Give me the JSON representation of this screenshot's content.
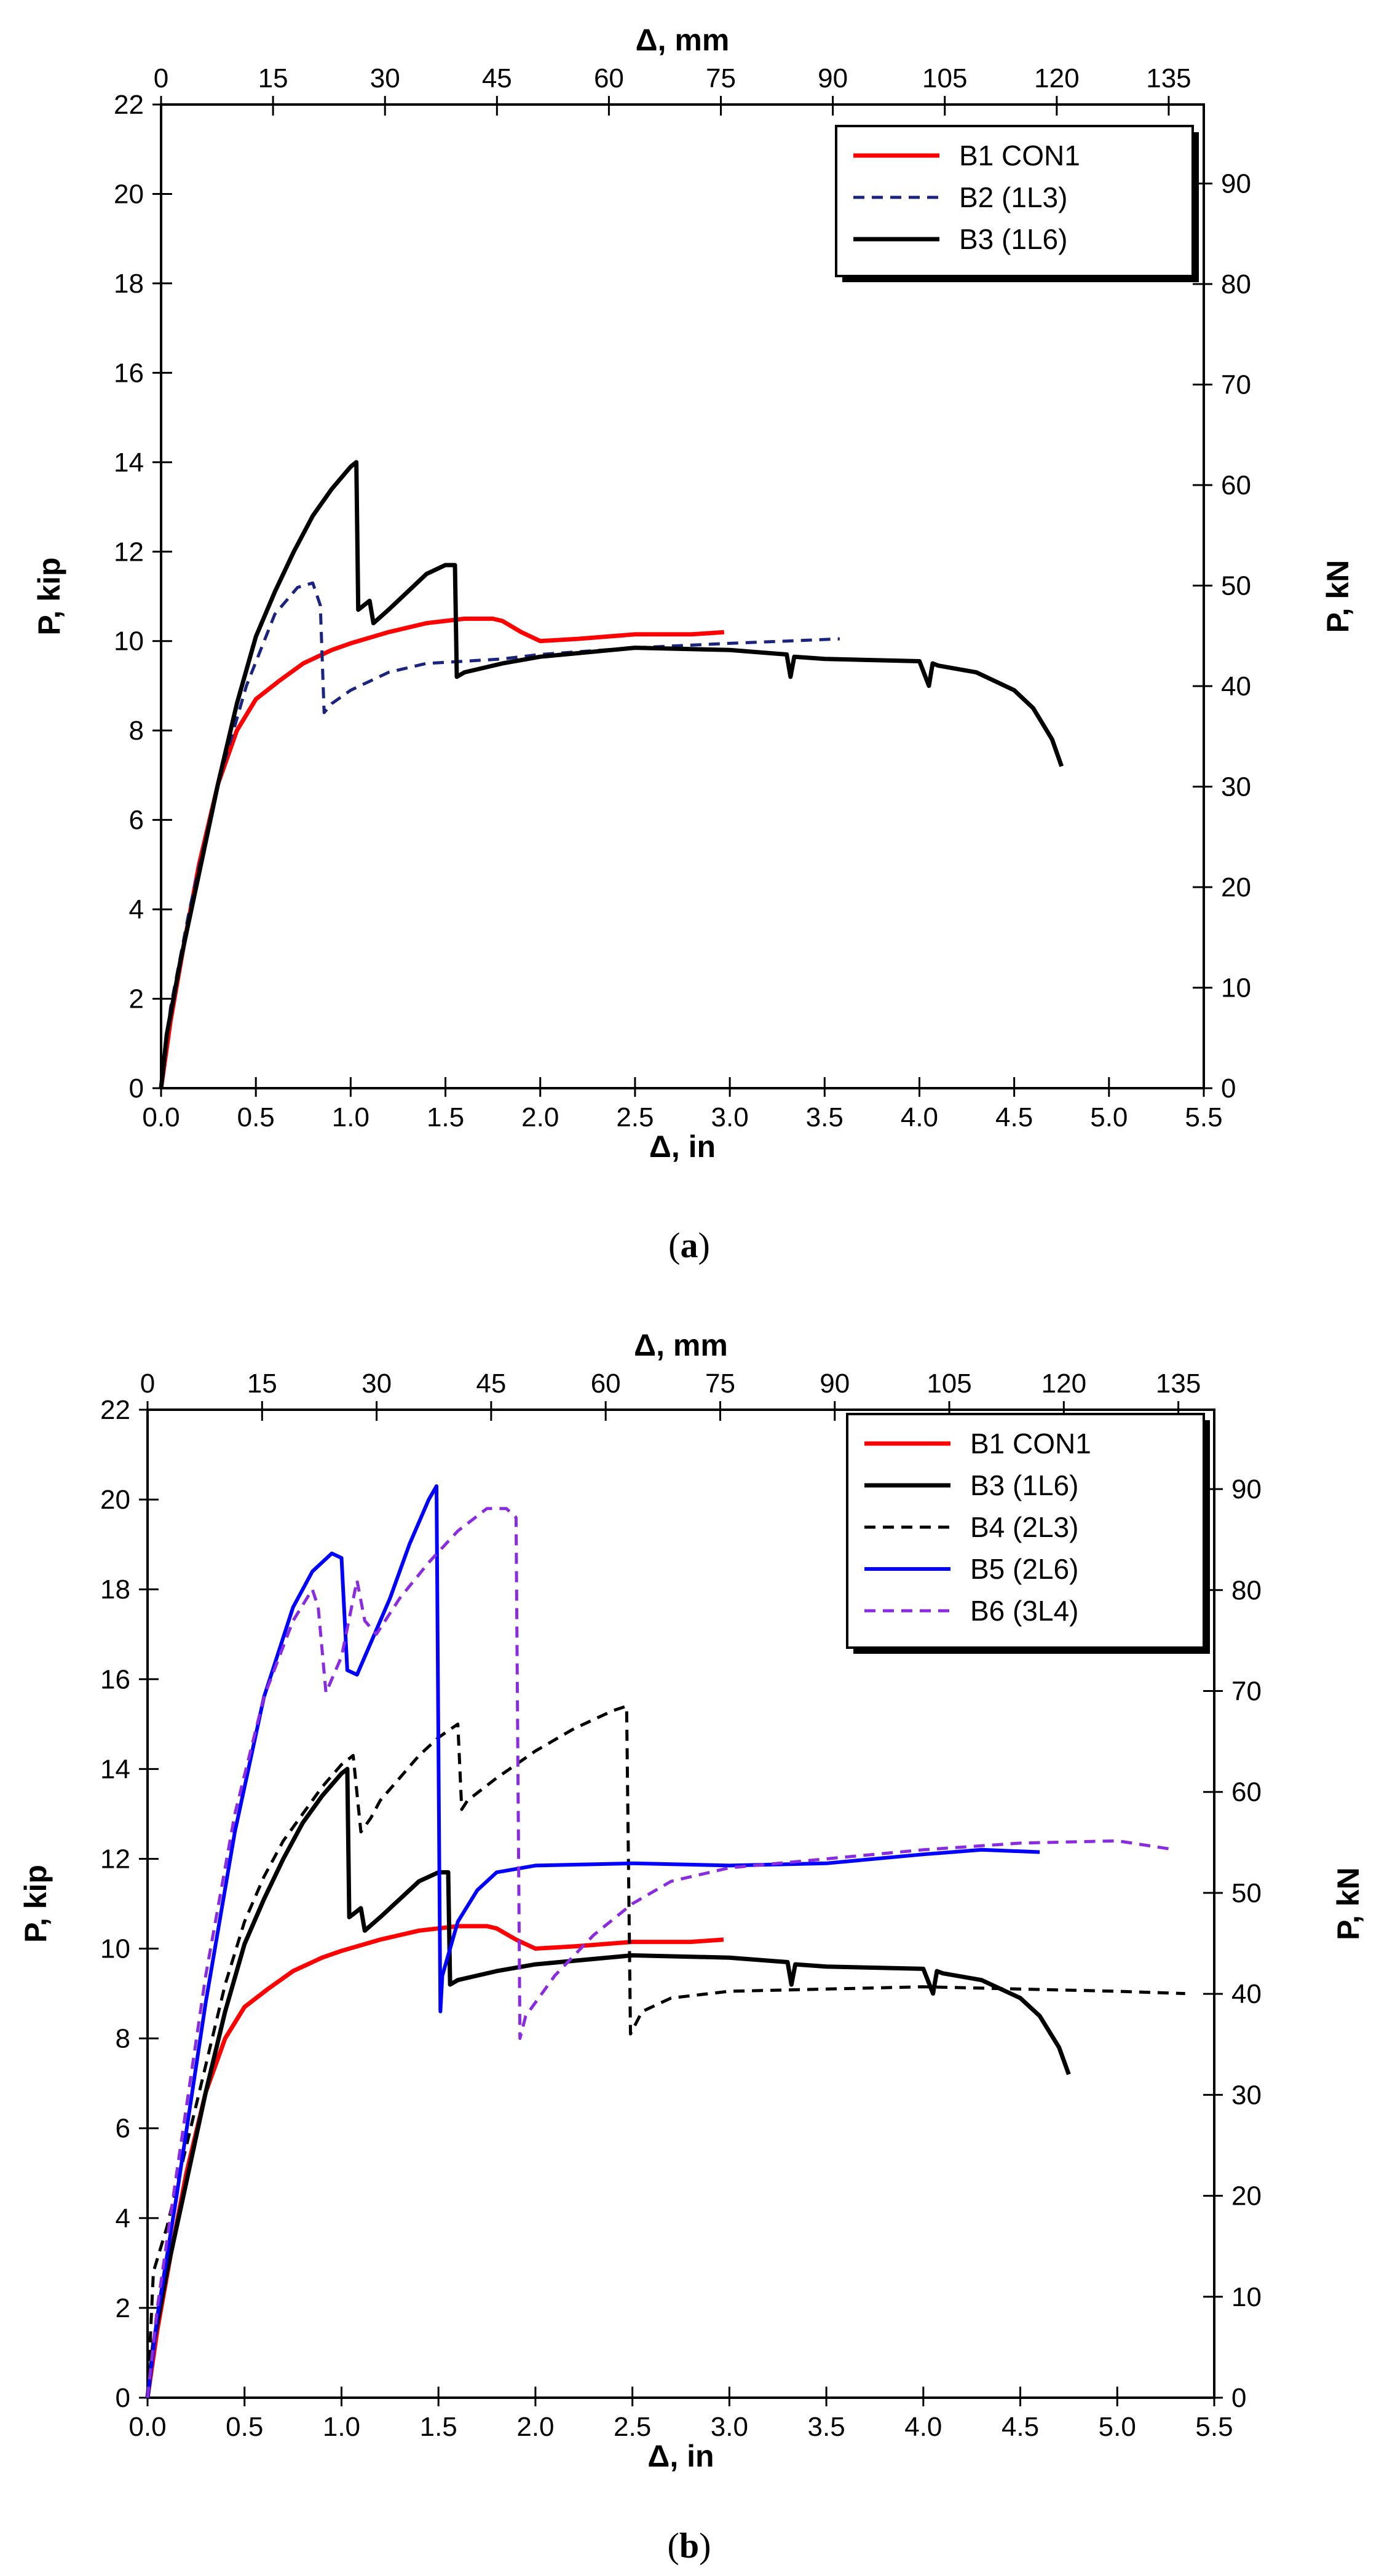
{
  "figure": {
    "panels": [
      "a",
      "b"
    ]
  },
  "chart_data": [
    {
      "id": "a",
      "type": "line",
      "caption_letter": "a",
      "caption_open": "(",
      "caption_close": ")",
      "xlabel": "Δ, in",
      "x2label": "Δ, mm",
      "ylabel": "P, kip",
      "y2label": "P, kN",
      "xlim": [
        0,
        5.5
      ],
      "ylim": [
        0,
        22
      ],
      "x2lim": [
        0,
        139.7
      ],
      "y2lim": [
        0,
        97.86
      ],
      "xticks": [
        "0.0",
        "0.5",
        "1.0",
        "1.5",
        "2.0",
        "2.5",
        "3.0",
        "3.5",
        "4.0",
        "4.5",
        "5.0",
        "5.5"
      ],
      "yticks": [
        "0",
        "2",
        "4",
        "6",
        "8",
        "10",
        "12",
        "14",
        "16",
        "18",
        "20",
        "22"
      ],
      "x2ticks": [
        "0",
        "15",
        "30",
        "45",
        "60",
        "75",
        "90",
        "105",
        "120",
        "135"
      ],
      "y2ticks": [
        "0",
        "10",
        "20",
        "30",
        "40",
        "50",
        "60",
        "70",
        "80",
        "90"
      ],
      "grid": false,
      "legend_position": "top-right",
      "series": [
        {
          "name": "B1 CON1",
          "color": "#ff0000",
          "dash": "solid",
          "width": 7,
          "x": [
            0,
            0.05,
            0.12,
            0.2,
            0.3,
            0.4,
            0.5,
            0.62,
            0.75,
            0.9,
            1.0,
            1.2,
            1.4,
            1.6,
            1.75,
            1.8,
            1.9,
            2.0,
            2.2,
            2.5,
            2.8,
            2.97
          ],
          "y": [
            0,
            1.5,
            3.2,
            5.0,
            6.8,
            8.0,
            8.7,
            9.1,
            9.5,
            9.8,
            9.95,
            10.2,
            10.4,
            10.5,
            10.5,
            10.45,
            10.2,
            10.0,
            10.05,
            10.15,
            10.15,
            10.2
          ]
        },
        {
          "name": "B2 (1L3)",
          "color": "#1a237e",
          "dash": "dashed",
          "width": 5,
          "x": [
            0,
            0.05,
            0.15,
            0.3,
            0.45,
            0.6,
            0.72,
            0.8,
            0.84,
            0.86,
            0.9,
            1.0,
            1.2,
            1.4,
            1.6,
            1.8,
            2.0,
            2.5,
            3.0,
            3.3,
            3.58
          ],
          "y": [
            0,
            1.8,
            4.0,
            6.8,
            9.0,
            10.6,
            11.2,
            11.3,
            10.8,
            8.4,
            8.6,
            8.9,
            9.3,
            9.5,
            9.55,
            9.6,
            9.7,
            9.85,
            9.95,
            10.0,
            10.05
          ]
        },
        {
          "name": "B3 (1L6)",
          "color": "#000000",
          "dash": "solid",
          "width": 7,
          "x": [
            0,
            0.03,
            0.1,
            0.2,
            0.3,
            0.4,
            0.5,
            0.6,
            0.7,
            0.8,
            0.9,
            1.0,
            1.03,
            1.04,
            1.1,
            1.12,
            1.2,
            1.3,
            1.4,
            1.5,
            1.55,
            1.56,
            1.6,
            1.8,
            2.0,
            2.5,
            3.0,
            3.3,
            3.32,
            3.34,
            3.5,
            4.0,
            4.05,
            4.07,
            4.1,
            4.3,
            4.5,
            4.6,
            4.7,
            4.75
          ],
          "y": [
            0,
            1.2,
            2.8,
            4.8,
            6.8,
            8.6,
            10.1,
            11.1,
            12.0,
            12.8,
            13.4,
            13.9,
            14.0,
            10.7,
            10.9,
            10.4,
            10.7,
            11.1,
            11.5,
            11.7,
            11.7,
            9.2,
            9.3,
            9.5,
            9.65,
            9.85,
            9.8,
            9.7,
            9.2,
            9.65,
            9.6,
            9.55,
            9.0,
            9.5,
            9.45,
            9.3,
            8.9,
            8.5,
            7.8,
            7.2
          ]
        }
      ]
    },
    {
      "id": "b",
      "type": "line",
      "caption_letter": "b",
      "caption_open": "(",
      "caption_close": ")",
      "xlabel": "Δ, in",
      "x2label": "Δ, mm",
      "ylabel": "P, kip",
      "y2label": "P, kN",
      "xlim": [
        0,
        5.5
      ],
      "ylim": [
        0,
        22
      ],
      "x2lim": [
        0,
        139.7
      ],
      "y2lim": [
        0,
        97.86
      ],
      "xticks": [
        "0.0",
        "0.5",
        "1.0",
        "1.5",
        "2.0",
        "2.5",
        "3.0",
        "3.5",
        "4.0",
        "4.5",
        "5.0",
        "5.5"
      ],
      "yticks": [
        "0",
        "2",
        "4",
        "6",
        "8",
        "10",
        "12",
        "14",
        "16",
        "18",
        "20",
        "22"
      ],
      "x2ticks": [
        "0",
        "15",
        "30",
        "45",
        "60",
        "75",
        "90",
        "105",
        "120",
        "135"
      ],
      "y2ticks": [
        "0",
        "10",
        "20",
        "30",
        "40",
        "50",
        "60",
        "70",
        "80",
        "90"
      ],
      "grid": false,
      "legend_position": "top-right",
      "series": [
        {
          "name": "B1 CON1",
          "color": "#ff0000",
          "dash": "solid",
          "width": 7,
          "x": [
            0,
            0.05,
            0.12,
            0.2,
            0.3,
            0.4,
            0.5,
            0.62,
            0.75,
            0.9,
            1.0,
            1.2,
            1.4,
            1.6,
            1.75,
            1.8,
            1.9,
            2.0,
            2.2,
            2.5,
            2.8,
            2.97
          ],
          "y": [
            0,
            1.5,
            3.2,
            5.0,
            6.8,
            8.0,
            8.7,
            9.1,
            9.5,
            9.8,
            9.95,
            10.2,
            10.4,
            10.5,
            10.5,
            10.45,
            10.2,
            10.0,
            10.05,
            10.15,
            10.15,
            10.2
          ]
        },
        {
          "name": "B3 (1L6)",
          "color": "#000000",
          "dash": "solid",
          "width": 7,
          "x": [
            0,
            0.03,
            0.1,
            0.2,
            0.3,
            0.4,
            0.5,
            0.6,
            0.7,
            0.8,
            0.9,
            1.0,
            1.03,
            1.04,
            1.1,
            1.12,
            1.2,
            1.3,
            1.4,
            1.5,
            1.55,
            1.56,
            1.6,
            1.8,
            2.0,
            2.5,
            3.0,
            3.3,
            3.32,
            3.34,
            3.5,
            4.0,
            4.05,
            4.07,
            4.1,
            4.3,
            4.5,
            4.6,
            4.7,
            4.75
          ],
          "y": [
            0,
            1.2,
            2.8,
            4.8,
            6.8,
            8.6,
            10.1,
            11.1,
            12.0,
            12.8,
            13.4,
            13.9,
            14.0,
            10.7,
            10.9,
            10.4,
            10.7,
            11.1,
            11.5,
            11.7,
            11.7,
            9.2,
            9.3,
            9.5,
            9.65,
            9.85,
            9.8,
            9.7,
            9.2,
            9.65,
            9.6,
            9.55,
            9.0,
            9.5,
            9.45,
            9.3,
            8.9,
            8.5,
            7.8,
            7.2
          ]
        },
        {
          "name": "B4 (2L3)",
          "color": "#000000",
          "dash": "dashed",
          "width": 5,
          "x": [
            0,
            0.03,
            0.1,
            0.2,
            0.3,
            0.4,
            0.5,
            0.6,
            0.7,
            0.8,
            0.9,
            1.0,
            1.06,
            1.1,
            1.15,
            1.2,
            1.3,
            1.4,
            1.5,
            1.6,
            1.62,
            1.65,
            1.8,
            2.0,
            2.2,
            2.4,
            2.47,
            2.49,
            2.55,
            2.7,
            3.0,
            3.5,
            4.0,
            4.5,
            5.0,
            5.35
          ],
          "y": [
            0,
            2.8,
            3.8,
            5.6,
            7.4,
            9.2,
            10.6,
            11.6,
            12.4,
            13.0,
            13.6,
            14.1,
            14.3,
            12.6,
            12.9,
            13.3,
            13.8,
            14.3,
            14.7,
            15.0,
            13.1,
            13.3,
            13.8,
            14.4,
            14.9,
            15.3,
            15.4,
            8.1,
            8.6,
            8.9,
            9.05,
            9.1,
            9.15,
            9.1,
            9.05,
            9.0
          ]
        },
        {
          "name": "B5 (2L6)",
          "color": "#0000ff",
          "dash": "solid",
          "width": 6,
          "x": [
            0,
            0.05,
            0.15,
            0.3,
            0.45,
            0.6,
            0.75,
            0.85,
            0.95,
            1.0,
            1.03,
            1.08,
            1.15,
            1.25,
            1.35,
            1.45,
            1.49,
            1.51,
            1.52,
            1.6,
            1.7,
            1.8,
            2.0,
            2.5,
            3.0,
            3.5,
            4.0,
            4.3,
            4.6
          ],
          "y": [
            0,
            1.8,
            4.5,
            8.8,
            12.6,
            15.6,
            17.6,
            18.4,
            18.8,
            18.7,
            16.2,
            16.1,
            16.8,
            17.8,
            19.0,
            20.0,
            20.3,
            8.6,
            9.4,
            10.6,
            11.3,
            11.7,
            11.85,
            11.9,
            11.85,
            11.9,
            12.1,
            12.2,
            12.15
          ]
        },
        {
          "name": "B6 (3L4)",
          "color": "#8a2be2",
          "dash": "dashed",
          "width": 5,
          "x": [
            0,
            0.05,
            0.15,
            0.3,
            0.45,
            0.6,
            0.75,
            0.85,
            0.88,
            0.92,
            1.0,
            1.08,
            1.12,
            1.18,
            1.3,
            1.45,
            1.6,
            1.75,
            1.85,
            1.9,
            1.92,
            1.95,
            2.1,
            2.3,
            2.5,
            2.7,
            3.0,
            3.5,
            4.0,
            4.5,
            5.0,
            5.3
          ],
          "y": [
            0,
            2.0,
            5.0,
            9.4,
            13.0,
            15.6,
            17.3,
            18.0,
            17.6,
            15.7,
            16.5,
            18.2,
            17.3,
            17.0,
            17.8,
            18.6,
            19.3,
            19.8,
            19.8,
            19.6,
            8.0,
            8.5,
            9.4,
            10.3,
            11.0,
            11.5,
            11.8,
            12.0,
            12.2,
            12.35,
            12.4,
            12.2
          ]
        }
      ]
    }
  ]
}
